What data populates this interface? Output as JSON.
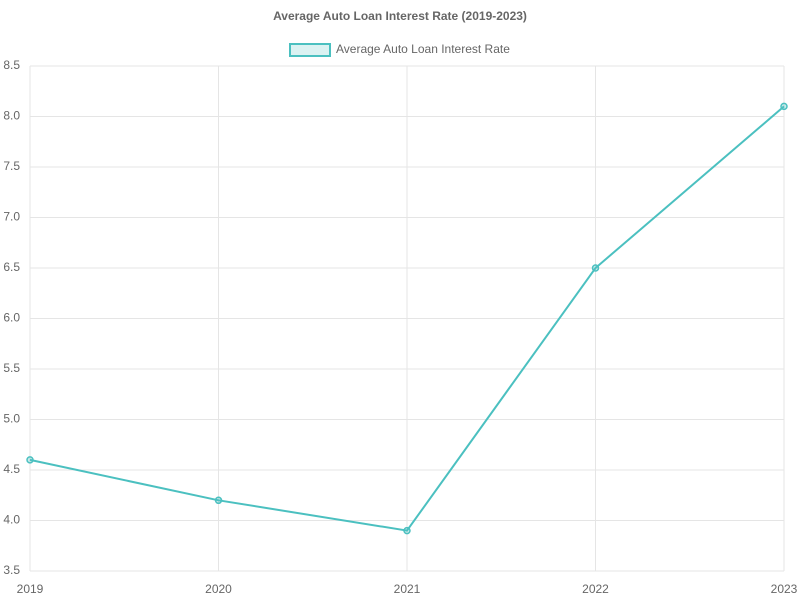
{
  "chart_data": {
    "type": "line",
    "title": "Average Auto Loan Interest Rate (2019-2023)",
    "categories": [
      "2019",
      "2020",
      "2021",
      "2022",
      "2023"
    ],
    "series": [
      {
        "name": "Average Auto Loan Interest Rate",
        "color": "#4bc0c0",
        "values": [
          4.6,
          4.2,
          3.9,
          6.5,
          8.1
        ]
      }
    ],
    "ylim": [
      3.5,
      8.5
    ],
    "yticks": [
      3.5,
      {
        "value": 4,
        "label": "4.0"
      },
      4.5,
      {
        "value": 5,
        "label": "5.0"
      },
      5.5,
      {
        "value": 6,
        "label": "6.0"
      },
      6.5,
      {
        "value": 7,
        "label": "7.0"
      },
      7.5,
      {
        "value": 8,
        "label": "8.0"
      },
      8.5
    ],
    "grid": true,
    "legend": "top"
  }
}
